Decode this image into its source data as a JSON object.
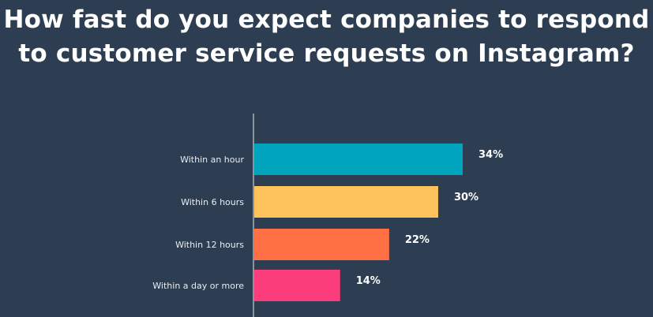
{
  "chart_data": {
    "type": "bar",
    "orientation": "horizontal",
    "title_lines": [
      "How fast do you expect companies to respond",
      "to customer service requests on Instagram?"
    ],
    "categories": [
      "Within an hour",
      "Within 6 hours",
      "Within 12 hours",
      "Within a day or more"
    ],
    "values": [
      34,
      30,
      22,
      14
    ],
    "value_labels": [
      "34%",
      "30%",
      "22%",
      "14%"
    ],
    "colors": [
      "#00a4bd",
      "#fec35d",
      "#ff7145",
      "#fc3d7b"
    ],
    "xlim": [
      0,
      34
    ],
    "grid": false,
    "legend": "none"
  }
}
